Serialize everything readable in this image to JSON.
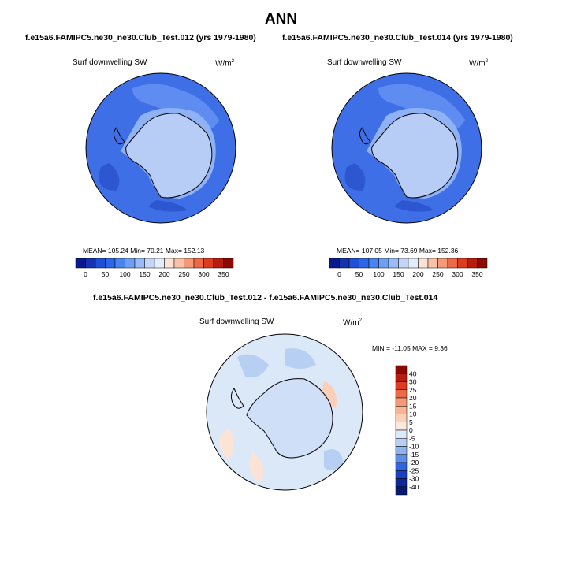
{
  "page_title": "ANN",
  "subtitle_left": "f.e15a6.FAMIPC5.ne30_ne30.Club_Test.012 (yrs 1979-1980)",
  "subtitle_right": "f.e15a6.FAMIPC5.ne30_ne30.Club_Test.014 (yrs 1979-1980)",
  "diff_title": "f.e15a6.FAMIPC5.ne30_ne30.Club_Test.012 - f.e15a6.FAMIPC5.ne30_ne30.Club_Test.014",
  "panels": {
    "left": {
      "variable": "Surf downwelling SW",
      "units_base": "W/m",
      "units_exp": "2",
      "stats": "MEAN= 105.24  Min=  70.21  Max= 152.13"
    },
    "right": {
      "variable": "Surf downwelling SW",
      "units_base": "W/m",
      "units_exp": "2",
      "stats": "MEAN= 107.05  Min=  73.69  Max= 152.36"
    },
    "diff": {
      "variable": "Surf downwelling SW",
      "units_base": "W/m",
      "units_exp": "2",
      "stats": "MIN = -11.05 MAX =   9.36"
    }
  },
  "colorbar_horizontal": {
    "labels": [
      "0",
      "50",
      "100",
      "150",
      "200",
      "250",
      "300",
      "350"
    ],
    "colors": [
      "#0a1a8c",
      "#1533b0",
      "#1f4fd6",
      "#2e66e8",
      "#4a84f0",
      "#6f9ff4",
      "#9abcf6",
      "#c3d6f8",
      "#e2ecfa",
      "#fde3d6",
      "#f9c2a8",
      "#f49a78",
      "#ec6a47",
      "#dc3d1f",
      "#b81c0c",
      "#8a0a02"
    ]
  },
  "colorbar_vertical": {
    "labels": [
      "40",
      "30",
      "25",
      "20",
      "15",
      "10",
      "5",
      "0",
      "-5",
      "-10",
      "-15",
      "-20",
      "-25",
      "-30",
      "-40"
    ],
    "colors": [
      "#8a0a02",
      "#b81c0c",
      "#dc3d1f",
      "#ec6a47",
      "#f49a78",
      "#f9b594",
      "#fcd0b8",
      "#fde8dc",
      "#dbe8f8",
      "#b8cff4",
      "#8fb2f0",
      "#5d8eea",
      "#2e66e0",
      "#1a40c0",
      "#0d2698",
      "#061a6e"
    ]
  }
}
